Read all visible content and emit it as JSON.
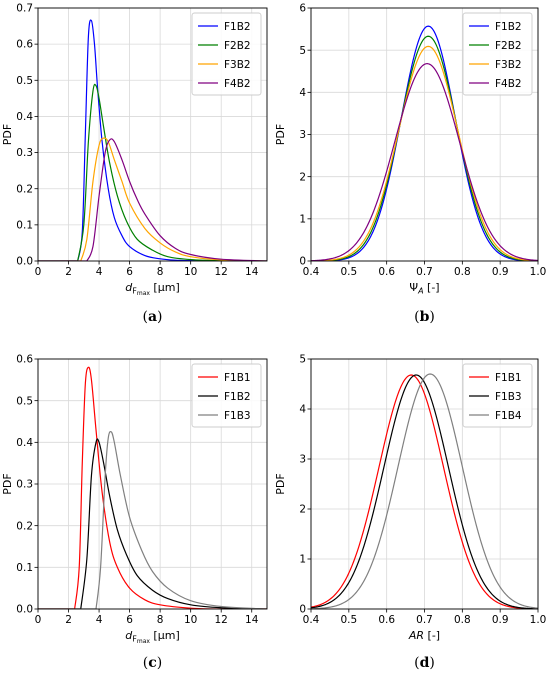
{
  "figure": {
    "panels": [
      {
        "id": "a",
        "caption": "(a)"
      },
      {
        "id": "b",
        "caption": "(b)"
      },
      {
        "id": "c",
        "caption": "(c)"
      },
      {
        "id": "d",
        "caption": "(d)"
      }
    ]
  },
  "chart_data": [
    {
      "type": "line",
      "panel": "(a)",
      "xlabel": "d_Fmax [µm]",
      "ylabel": "PDF",
      "xlim": [
        0,
        15
      ],
      "ylim": [
        0,
        0.7
      ],
      "xticks": [
        0,
        2,
        4,
        6,
        8,
        10,
        12,
        14
      ],
      "yticks": [
        0.0,
        0.1,
        0.2,
        0.3,
        0.4,
        0.5,
        0.6,
        0.7
      ],
      "grid": true,
      "legend_position": "top-right",
      "series": [
        {
          "name": "F1B2",
          "color": "#0000ff",
          "x": [
            2.6,
            2.9,
            3.1,
            3.3,
            3.5,
            3.7,
            3.9,
            4.2,
            4.6,
            5.0,
            5.5,
            6.0,
            7.0,
            8.0,
            9.0,
            10.0,
            12.0,
            15.0
          ],
          "y": [
            0.0,
            0.08,
            0.35,
            0.62,
            0.665,
            0.6,
            0.48,
            0.33,
            0.2,
            0.12,
            0.07,
            0.04,
            0.015,
            0.006,
            0.002,
            0.001,
            0.0,
            0.0
          ]
        },
        {
          "name": "F2B2",
          "color": "#008000",
          "x": [
            2.6,
            3.0,
            3.3,
            3.6,
            3.8,
            4.0,
            4.3,
            4.7,
            5.2,
            5.8,
            6.5,
            7.5,
            8.5,
            10.0,
            12.0,
            15.0
          ],
          "y": [
            0.0,
            0.1,
            0.33,
            0.47,
            0.485,
            0.45,
            0.37,
            0.27,
            0.18,
            0.11,
            0.06,
            0.03,
            0.012,
            0.004,
            0.001,
            0.0
          ]
        },
        {
          "name": "F3B2",
          "color": "#ffa500",
          "x": [
            2.8,
            3.2,
            3.6,
            4.0,
            4.3,
            4.6,
            5.0,
            5.5,
            6.0,
            7.0,
            8.0,
            9.0,
            10.0,
            12.0,
            15.0
          ],
          "y": [
            0.0,
            0.06,
            0.22,
            0.32,
            0.34,
            0.33,
            0.28,
            0.22,
            0.16,
            0.09,
            0.05,
            0.025,
            0.012,
            0.003,
            0.0
          ]
        },
        {
          "name": "F4B2",
          "color": "#800080",
          "x": [
            3.2,
            3.6,
            4.0,
            4.4,
            4.7,
            5.0,
            5.5,
            6.0,
            6.5,
            7.0,
            8.0,
            9.0,
            10.0,
            12.0,
            15.0
          ],
          "y": [
            0.0,
            0.04,
            0.18,
            0.3,
            0.335,
            0.33,
            0.28,
            0.22,
            0.17,
            0.13,
            0.07,
            0.035,
            0.018,
            0.005,
            0.0
          ]
        }
      ]
    },
    {
      "type": "line",
      "panel": "(b)",
      "xlabel": "Ψ_A [-]",
      "ylabel": "PDF",
      "xlim": [
        0.4,
        1.0
      ],
      "ylim": [
        0,
        6
      ],
      "xticks": [
        0.4,
        0.5,
        0.6,
        0.7,
        0.8,
        0.9,
        1.0
      ],
      "yticks": [
        0,
        1,
        2,
        3,
        4,
        5,
        6
      ],
      "grid": true,
      "legend_position": "top-right",
      "series": [
        {
          "name": "F1B2",
          "color": "#0000ff",
          "mean": 0.71,
          "peak": 5.57
        },
        {
          "name": "F2B2",
          "color": "#008000",
          "mean": 0.71,
          "peak": 5.33
        },
        {
          "name": "F3B2",
          "color": "#ffa500",
          "mean": 0.71,
          "peak": 5.09
        },
        {
          "name": "F4B2",
          "color": "#800080",
          "mean": 0.707,
          "peak": 4.68
        }
      ]
    },
    {
      "type": "line",
      "panel": "(c)",
      "xlabel": "d_Fmax [µm]",
      "ylabel": "PDF",
      "xlim": [
        0,
        15
      ],
      "ylim": [
        0,
        0.6
      ],
      "xticks": [
        0,
        2,
        4,
        6,
        8,
        10,
        12,
        14
      ],
      "yticks": [
        0.0,
        0.1,
        0.2,
        0.3,
        0.4,
        0.5,
        0.6
      ],
      "grid": true,
      "legend_position": "top-right",
      "series": [
        {
          "name": "F1B1",
          "color": "#ff0000",
          "x": [
            2.4,
            2.7,
            2.9,
            3.1,
            3.3,
            3.5,
            3.8,
            4.2,
            4.7,
            5.2,
            6.0,
            7.0,
            8.0,
            10.0,
            12.0,
            15.0
          ],
          "y": [
            0.0,
            0.1,
            0.35,
            0.54,
            0.58,
            0.55,
            0.43,
            0.28,
            0.16,
            0.1,
            0.05,
            0.022,
            0.01,
            0.002,
            0.0,
            0.0
          ]
        },
        {
          "name": "F1B2",
          "color": "#000000",
          "x": [
            2.8,
            3.2,
            3.5,
            3.8,
            4.0,
            4.3,
            4.7,
            5.2,
            5.8,
            6.5,
            7.5,
            8.5,
            10.0,
            12.0,
            15.0
          ],
          "y": [
            0.0,
            0.12,
            0.32,
            0.4,
            0.4,
            0.35,
            0.27,
            0.19,
            0.13,
            0.08,
            0.045,
            0.025,
            0.01,
            0.003,
            0.0
          ]
        },
        {
          "name": "F1B3",
          "color": "#808080",
          "x": [
            3.8,
            4.1,
            4.4,
            4.6,
            4.8,
            5.0,
            5.4,
            6.0,
            6.8,
            7.5,
            8.5,
            10.0,
            12.0,
            15.0
          ],
          "y": [
            0.0,
            0.1,
            0.32,
            0.41,
            0.425,
            0.4,
            0.32,
            0.22,
            0.14,
            0.09,
            0.05,
            0.02,
            0.006,
            0.0
          ]
        }
      ]
    },
    {
      "type": "line",
      "panel": "(d)",
      "xlabel": "AR [-]",
      "ylabel": "PDF",
      "xlim": [
        0.4,
        1.0
      ],
      "ylim": [
        0,
        5
      ],
      "xticks": [
        0.4,
        0.5,
        0.6,
        0.7,
        0.8,
        0.9,
        1.0
      ],
      "yticks": [
        0,
        1,
        2,
        3,
        4,
        5
      ],
      "grid": true,
      "legend_position": "top-right",
      "series": [
        {
          "name": "F1B1",
          "color": "#ff0000",
          "mean": 0.665,
          "peak": 4.68
        },
        {
          "name": "F1B3",
          "color": "#000000",
          "mean": 0.678,
          "peak": 4.68
        },
        {
          "name": "F1B4",
          "color": "#808080",
          "mean": 0.715,
          "peak": 4.7
        }
      ]
    }
  ]
}
